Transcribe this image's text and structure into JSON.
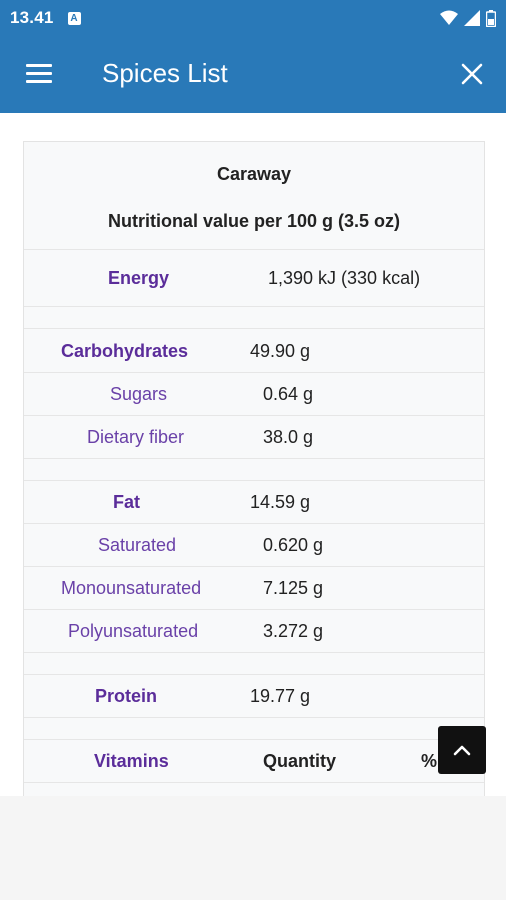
{
  "status_bar": {
    "time": "13.41",
    "notification_letter": "A"
  },
  "app_bar": {
    "title": "Spices List"
  },
  "table": {
    "title": "Caraway",
    "subtitle": "Nutritional value per 100 g (3.5 oz)",
    "energy": {
      "label": "Energy",
      "value": "1,390 kJ (330 kcal)"
    },
    "carbohydrates": {
      "label": "Carbohydrates",
      "value": "49.90 g"
    },
    "sugars": {
      "label": "Sugars",
      "value": "0.64 g"
    },
    "dietary_fiber": {
      "label": "Dietary fiber",
      "value": "38.0 g"
    },
    "fat": {
      "label": "Fat",
      "value": "14.59 g"
    },
    "saturated": {
      "label": "Saturated",
      "value": "0.620 g"
    },
    "monounsaturated": {
      "label": "Monounsaturated",
      "value": "7.125 g"
    },
    "polyunsaturated": {
      "label": "Polyunsaturated",
      "value": "3.272 g"
    },
    "protein": {
      "label": "Protein",
      "value": "19.77 g"
    },
    "vitamins_header": {
      "label": "Vitamins",
      "quantity": "Quantity",
      "dv": "%"
    }
  },
  "icons": {
    "menu": "hamburger-icon",
    "close": "close-icon",
    "scroll_top": "chevron-up-icon"
  },
  "colors": {
    "primary": "#2979b8",
    "label_purple": "#5b2d9a"
  }
}
